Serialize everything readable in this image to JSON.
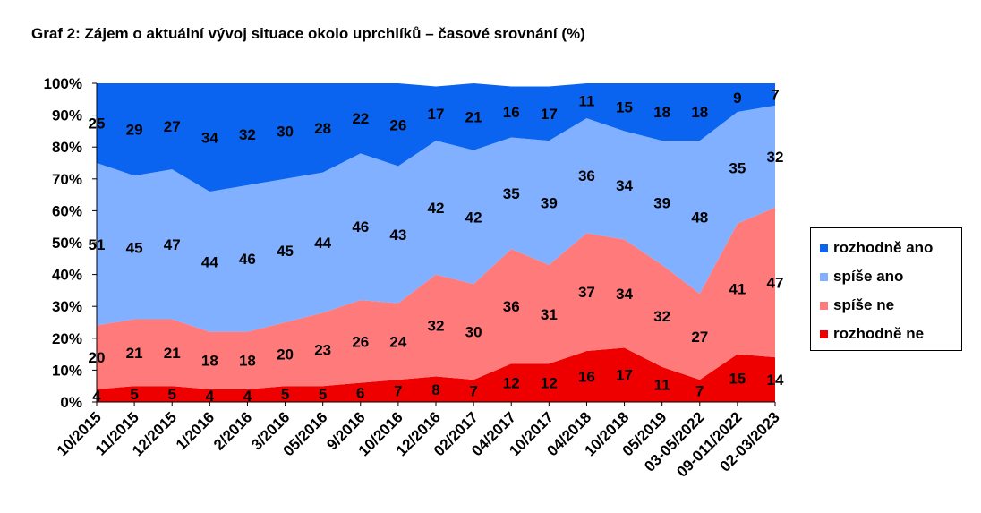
{
  "chart_data": {
    "type": "area",
    "stacked": true,
    "title": "Graf 2: Zájem o aktuální vývoj situace okolo uprchlíků – časové srovnání (%)",
    "xlabel": "",
    "ylabel": "",
    "ylim": [
      0,
      100
    ],
    "yticks": [
      "0%",
      "10%",
      "20%",
      "30%",
      "40%",
      "50%",
      "60%",
      "70%",
      "80%",
      "90%",
      "100%"
    ],
    "grid": false,
    "legend_position": "right",
    "categories": [
      "10/2015",
      "11/2015",
      "12/2015",
      "1/2016",
      "2/2016",
      "3/2016",
      "05/2016",
      "9/2016",
      "10/2016",
      "12/2016",
      "02/2017",
      "04/2017",
      "10/2017",
      "04/2018",
      "10/2018",
      "05/2019",
      "03-05/2022",
      "09-011/2022",
      "02-03/2023"
    ],
    "series": [
      {
        "name": "rozhodně ne",
        "color": "#ee0000",
        "values": [
          4,
          5,
          5,
          4,
          4,
          5,
          5,
          6,
          7,
          8,
          7,
          12,
          12,
          16,
          17,
          11,
          7,
          15,
          14
        ]
      },
      {
        "name": "spíše ne",
        "color": "#ff7b7b",
        "values": [
          20,
          21,
          21,
          18,
          18,
          20,
          23,
          26,
          24,
          32,
          30,
          36,
          31,
          37,
          34,
          32,
          27,
          41,
          47
        ]
      },
      {
        "name": "spíše ano",
        "color": "#80b0ff",
        "values": [
          51,
          45,
          47,
          44,
          46,
          45,
          44,
          46,
          43,
          42,
          42,
          35,
          39,
          36,
          34,
          39,
          48,
          35,
          32
        ]
      },
      {
        "name": "rozhodně ano",
        "color": "#0a64f0",
        "values": [
          25,
          29,
          27,
          34,
          32,
          30,
          28,
          22,
          26,
          17,
          21,
          16,
          17,
          11,
          15,
          18,
          18,
          9,
          7
        ]
      }
    ],
    "legend_order": [
      "rozhodně ano",
      "spíše ano",
      "spíše ne",
      "rozhodně ne"
    ]
  }
}
